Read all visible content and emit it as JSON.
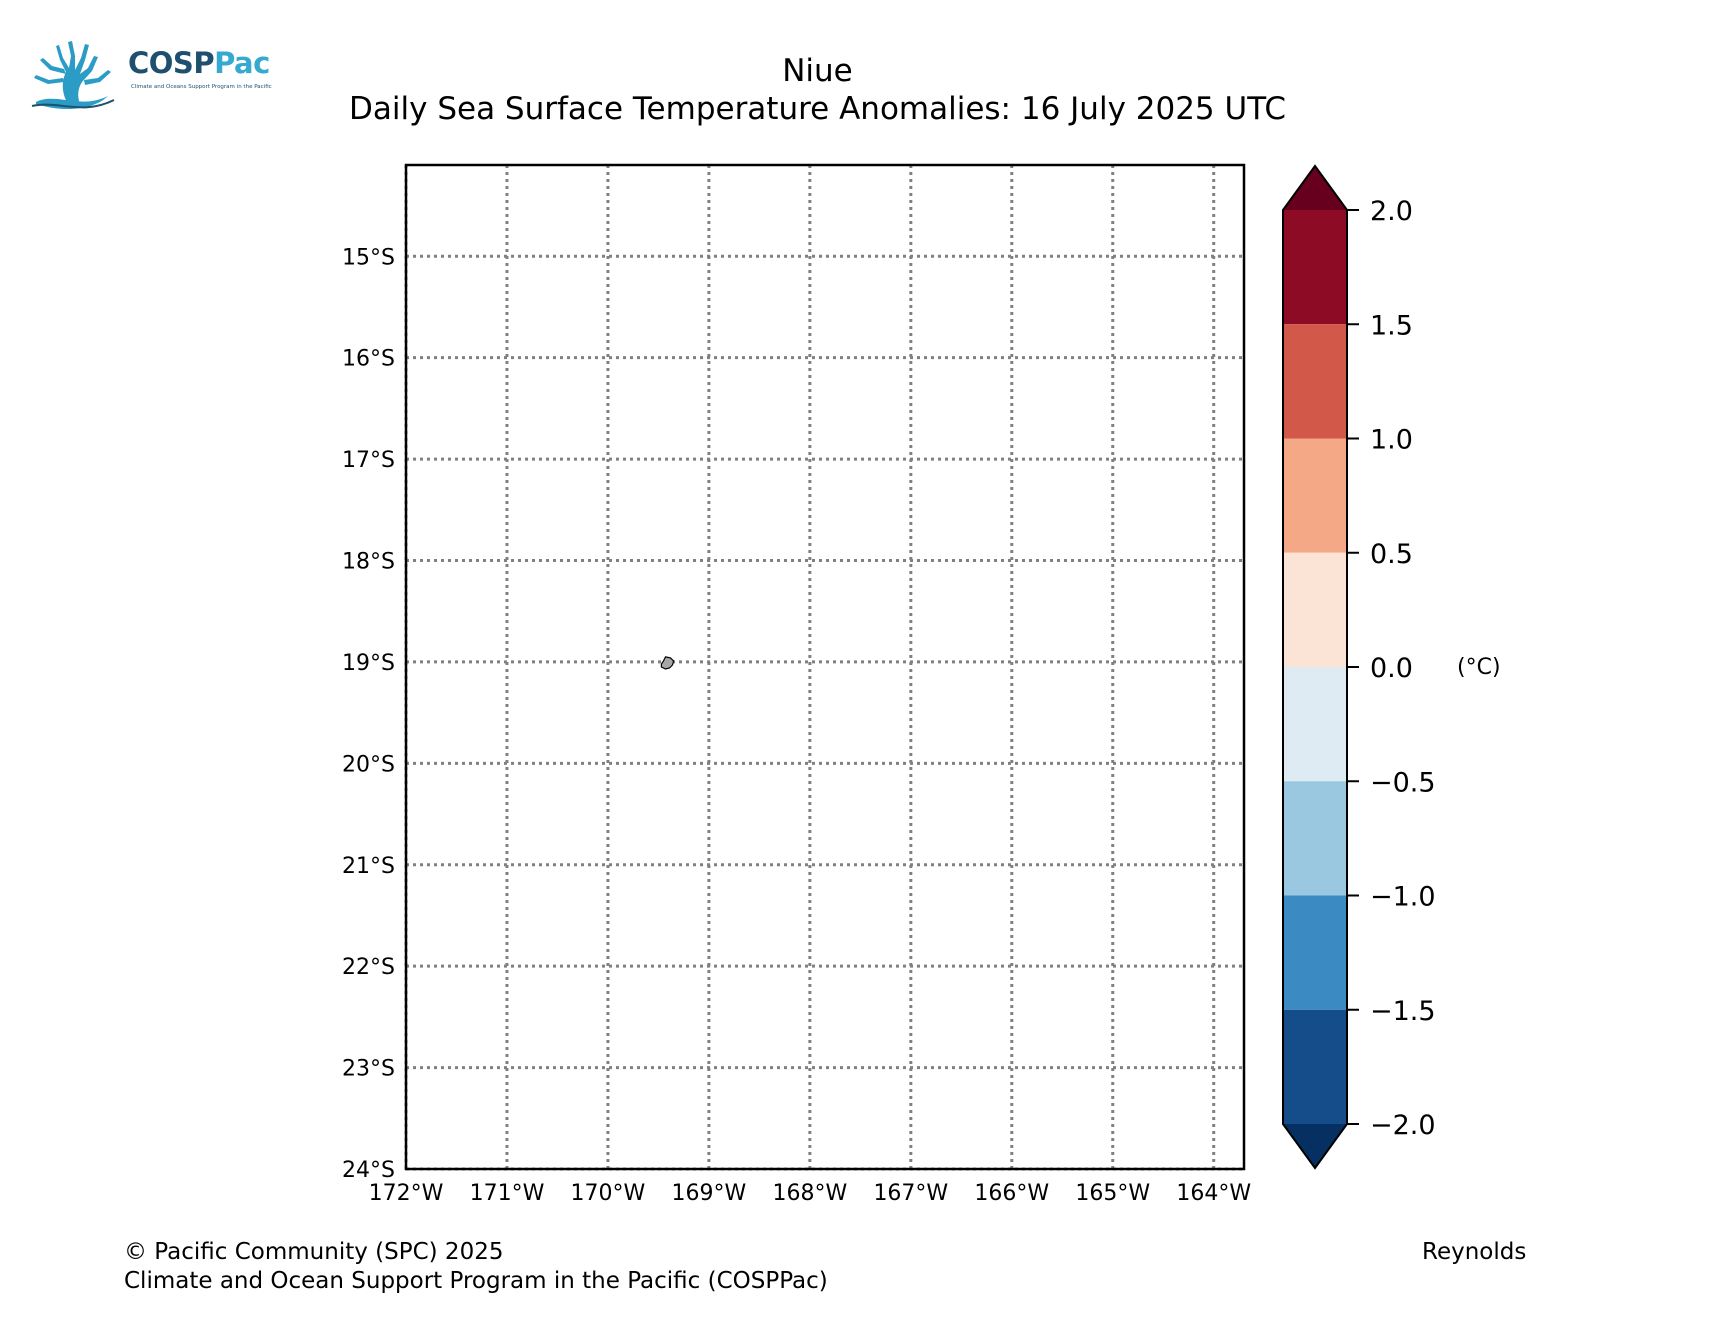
{
  "logo": {
    "name": "COSP",
    "name_accent": "Pac",
    "tagline": "Climate and Oceans Support Program in the Pacific"
  },
  "title": {
    "line1": "Niue",
    "line2": "Daily Sea Surface Temperature Anomalies: 16 July 2025 UTC"
  },
  "map": {
    "lon_range": [
      -172,
      -163.7
    ],
    "lat_range": [
      -24,
      -14.1
    ],
    "lon_ticks": [
      -172,
      -171,
      -170,
      -169,
      -168,
      -167,
      -166,
      -165,
      -164
    ],
    "lon_tick_labels": [
      "172°W",
      "171°W",
      "170°W",
      "169°W",
      "168°W",
      "167°W",
      "166°W",
      "165°W",
      "164°W"
    ],
    "lat_ticks": [
      -15,
      -16,
      -17,
      -18,
      -19,
      -20,
      -21,
      -22,
      -23,
      -24
    ],
    "lat_tick_labels": [
      "15°S",
      "16°S",
      "17°S",
      "18°S",
      "19°S",
      "20°S",
      "21°S",
      "22°S",
      "23°S",
      "24°S"
    ],
    "gridlines": true,
    "gridline_style": "dotted",
    "gridline_color": "#808080",
    "island": {
      "feature": "Niue island",
      "fill": "#a6a6a6",
      "outline": [
        [
          -169.43,
          -18.95
        ],
        [
          -169.38,
          -18.96
        ],
        [
          -169.35,
          -18.99
        ],
        [
          -169.36,
          -19.03
        ],
        [
          -169.39,
          -19.06
        ],
        [
          -169.43,
          -19.07
        ],
        [
          -169.47,
          -19.05
        ],
        [
          -169.47,
          -19.02
        ],
        [
          -169.45,
          -18.99
        ]
      ]
    }
  },
  "colorbar": {
    "unit_label": "(°C)",
    "ticks": [
      2.0,
      1.5,
      1.0,
      0.5,
      0.0,
      -0.5,
      -1.0,
      -1.5,
      -2.0
    ],
    "tick_labels": [
      "2.0",
      "1.5",
      "1.0",
      "0.5",
      "0.0",
      "−0.5",
      "−1.0",
      "−1.5",
      "−2.0"
    ],
    "extend_max_color": "#67001f",
    "extend_min_color": "#053061",
    "bins": [
      {
        "from": 1.5,
        "to": 2.0,
        "color": "#8e0b25"
      },
      {
        "from": 1.0,
        "to": 1.5,
        "color": "#d25849"
      },
      {
        "from": 0.5,
        "to": 1.0,
        "color": "#f5a886"
      },
      {
        "from": 0.0,
        "to": 0.5,
        "color": "#fbe3d6"
      },
      {
        "from": -0.5,
        "to": 0.0,
        "color": "#deebf2"
      },
      {
        "from": -1.0,
        "to": -0.5,
        "color": "#9ac8e0"
      },
      {
        "from": -1.5,
        "to": -1.0,
        "color": "#3b8bc2"
      },
      {
        "from": -2.0,
        "to": -1.5,
        "color": "#144d89"
      }
    ]
  },
  "footer": {
    "copyright": "© Pacific Community (SPC) 2025",
    "program": "Climate and Ocean Support Program in the Pacific (COSPPac)",
    "source": "Reynolds"
  }
}
